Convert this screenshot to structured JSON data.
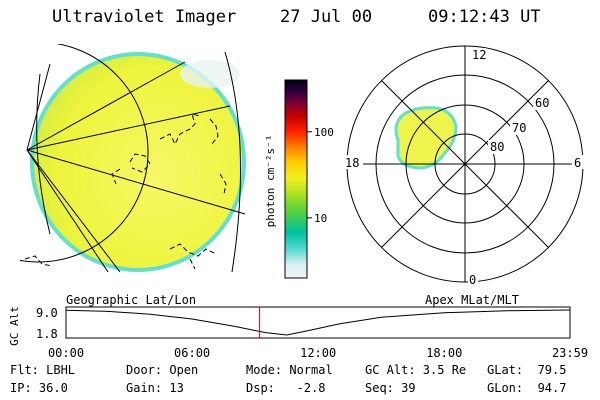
{
  "header": {
    "instrument": "Ultraviolet Imager",
    "date": "27 Jul 00",
    "time": "09:12:43 UT"
  },
  "colorbar": {
    "label": "photon cm⁻²s⁻¹",
    "ticks": [
      "100",
      "10"
    ],
    "tick_values": [
      100,
      10
    ],
    "range": [
      2,
      400
    ],
    "colors": [
      "#f2f2f2",
      "#d8eef0",
      "#4fd8d0",
      "#00c0a0",
      "#50d040",
      "#a8e020",
      "#f0f020",
      "#ffd000",
      "#ff8000",
      "#ff2000",
      "#c00000",
      "#800030",
      "#300040",
      "#000010"
    ]
  },
  "polar": {
    "mlt_labels": {
      "top": "12",
      "left": "18",
      "right": "6",
      "bottom": "0"
    },
    "lat_labels": [
      "60",
      "70",
      "80"
    ]
  },
  "alt_plot": {
    "left_title": "Geographic Lat/Lon",
    "right_title": "Apex MLat/MLT",
    "ylabel": "GC Alt",
    "yticks": [
      "9.0",
      "1.8"
    ],
    "ylim": [
      1.8,
      9.0
    ],
    "xticks": [
      "00:00",
      "06:00",
      "12:00",
      "18:00",
      "23:59"
    ],
    "marker_hours": 9.212,
    "curve": [
      {
        "h": 0,
        "alt": 8.9
      },
      {
        "h": 2,
        "alt": 8.6
      },
      {
        "h": 4,
        "alt": 7.8
      },
      {
        "h": 6,
        "alt": 6.4
      },
      {
        "h": 8,
        "alt": 4.3
      },
      {
        "h": 9.5,
        "alt": 2.5
      },
      {
        "h": 10.5,
        "alt": 1.8
      },
      {
        "h": 11.5,
        "alt": 3.0
      },
      {
        "h": 13,
        "alt": 5.0
      },
      {
        "h": 15,
        "alt": 6.9
      },
      {
        "h": 18,
        "alt": 8.2
      },
      {
        "h": 21,
        "alt": 8.8
      },
      {
        "h": 23.98,
        "alt": 9.0
      }
    ],
    "colors": {
      "curve": "#000000",
      "marker": "#e00000"
    }
  },
  "info": {
    "flt": "Flt: LBHL",
    "door": "Door: Open",
    "mode": "Mode: Normal",
    "gc_alt": "GC Alt: 3.5 Re",
    "glat": "GLat:  79.5",
    "ip": "IP: 36.0",
    "gain": "Gain: 13",
    "dsp": "Dsp:   -2.8",
    "seq": "Seq: 39",
    "glon": "GLon:  94.7"
  },
  "colors": {
    "image_fill": "#f2f64a",
    "image_rim": "#60e0d0"
  }
}
